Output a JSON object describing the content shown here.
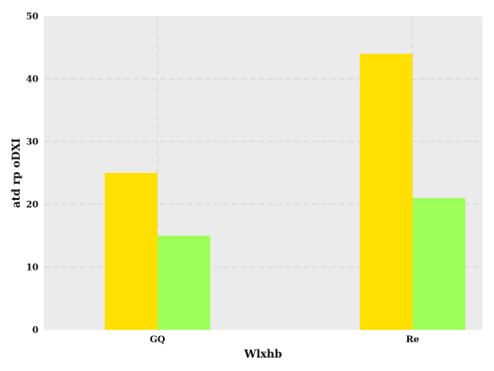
{
  "chart_data": {
    "type": "bar",
    "categories": [
      "GQ",
      "Re"
    ],
    "series": [
      {
        "values": [
          25,
          44
        ],
        "color": "#ffe000"
      },
      {
        "values": [
          15,
          21
        ],
        "color": "#9eff5a"
      }
    ],
    "xlabel": "Wlxhb",
    "ylabel": "atd  rp oDXI",
    "ylim": [
      0,
      50
    ],
    "yticks": [
      0,
      10,
      20,
      30,
      40,
      50
    ],
    "grid": true,
    "legend": "none",
    "background": "#ebebeb",
    "grid_color": "#d6d6d6"
  }
}
